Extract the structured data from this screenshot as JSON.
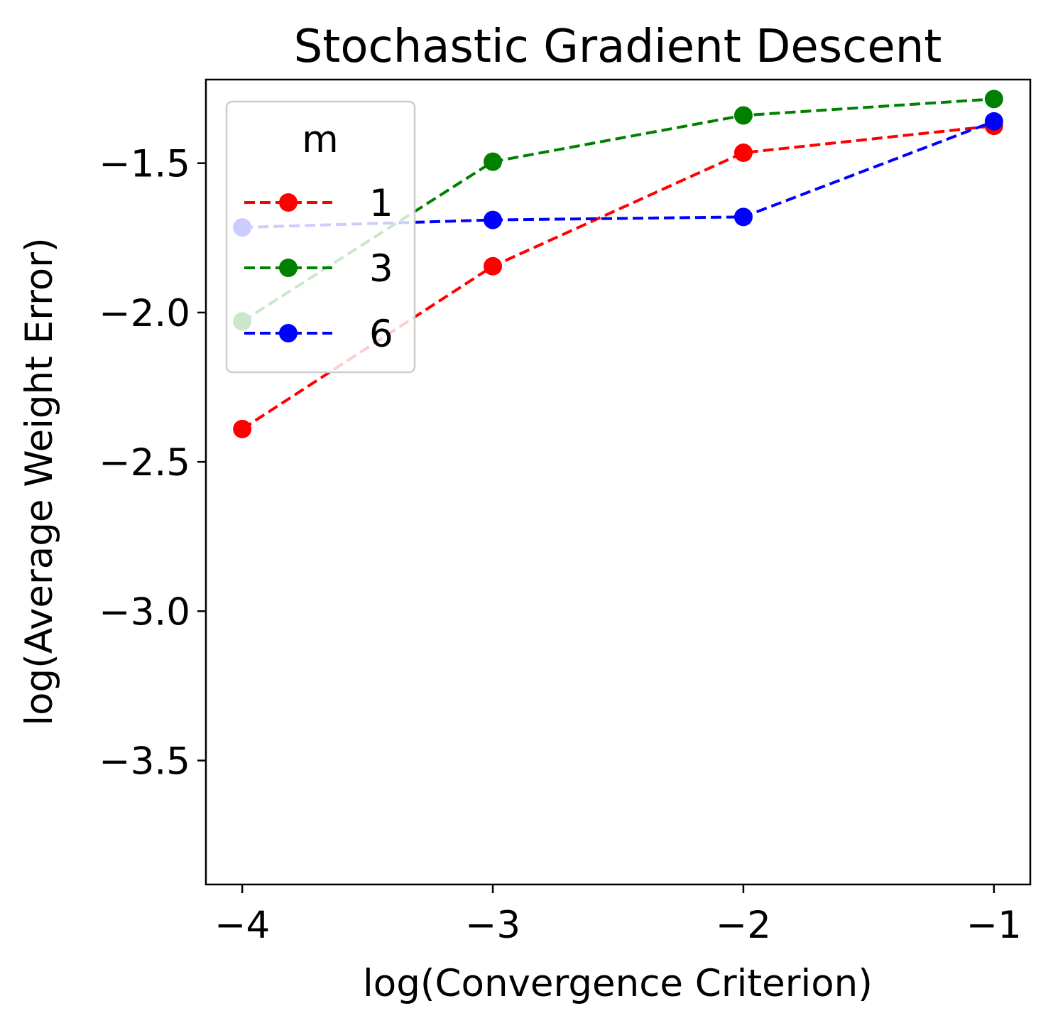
{
  "chart_data": {
    "type": "line",
    "title": "Stochastic Gradient Descent",
    "xlabel": "log(Convergence Criterion)",
    "ylabel": "log(Average Weight Error)",
    "xlim": [
      -4.145,
      -0.855
    ],
    "ylim": [
      -3.915,
      -1.22
    ],
    "xticks": [
      -4,
      -3,
      -2,
      -1
    ],
    "xtick_labels": [
      "−4",
      "−3",
      "−2",
      "−1"
    ],
    "yticks": [
      -1.5,
      -2.0,
      -2.5,
      -3.0,
      -3.5
    ],
    "ytick_labels": [
      "−1.5",
      "−2.0",
      "−2.5",
      "−3.0",
      "−3.5"
    ],
    "x": [
      -4,
      -3,
      -2,
      -1
    ],
    "legend": {
      "title": "m",
      "placement": "upper left"
    },
    "series": [
      {
        "name": "1",
        "color": "#ff0000",
        "linestyle": "dashed",
        "marker": "circle",
        "values": [
          -2.39,
          -1.845,
          -1.465,
          -1.375
        ]
      },
      {
        "name": "3",
        "color": "#008000",
        "linestyle": "dashed",
        "marker": "circle",
        "values": [
          -2.03,
          -1.495,
          -1.34,
          -1.285
        ]
      },
      {
        "name": "6",
        "color": "#0000ff",
        "linestyle": "dashed",
        "marker": "circle",
        "values": [
          -1.715,
          -1.69,
          -1.68,
          -1.36
        ]
      }
    ]
  }
}
